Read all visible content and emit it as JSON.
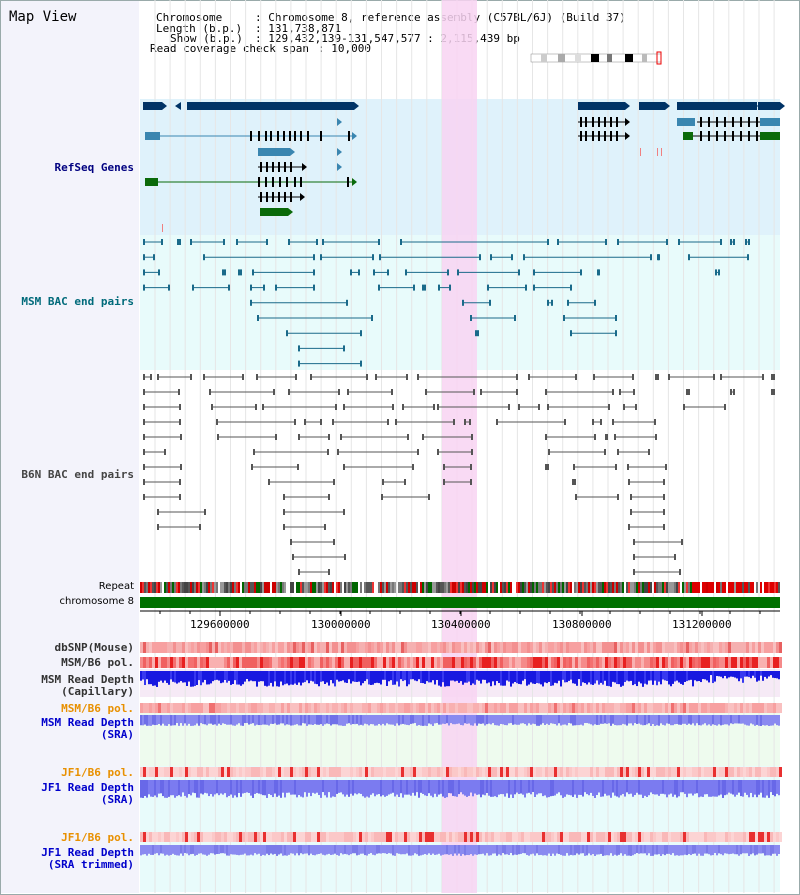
{
  "view_title": "Map View",
  "info": {
    "chromosome_label": "Chromosome",
    "chromosome_value": ": Chromosome 8, reference assembly (C57BL/6J) (Build 37)",
    "length_label": "Length (b.p.)",
    "length_value": ": 131,738,871",
    "show_label": "Show (b.p.)",
    "show_value": ": 129,432,139-131,547,577 : 2,115,439 bp",
    "coverage_label": "Read coverage check span",
    "coverage_value": ": 10,000"
  },
  "tracks": {
    "refseq": "RefSeq Genes",
    "msm_bac": "MSM BAC end pairs",
    "b6n_bac": "B6N BAC end pairs",
    "repeat": "Repeat",
    "chromosome": "chromosome 8",
    "dbsnp": "dbSNP(Mouse)",
    "msm_b6_pol_1": "MSM/B6 pol.",
    "msm_depth_cap_1": "MSM Read Depth",
    "msm_depth_cap_2": "(Capillary)",
    "msm_b6_pol_2": "MSM/B6 pol.",
    "msm_depth_sra_1": "MSM Read Depth",
    "msm_depth_sra_2": "(SRA)",
    "jf1_pol_1": "JF1/B6 pol.",
    "jf1_depth_sra_1": "JF1 Read Depth",
    "jf1_depth_sra_2": "(SRA)",
    "jf1_pol_2": "JF1/B6 pol.",
    "jf1_depth_trim_1": "JF1 Read Depth",
    "jf1_depth_trim_2": "(SRA trimmed)"
  },
  "axis_ticks": [
    "129600000",
    "130000000",
    "130400000",
    "130800000",
    "131200000"
  ],
  "colors": {
    "refseq_bg": "#dff2fb",
    "msm_bac_bg": "#e8fbfb",
    "highlight": "#f8d4f2",
    "navy": "#003366",
    "teal": "#2e6e8e",
    "green": "#0a6a0a",
    "depth_blue": "#2020e8",
    "depth_light": "#8888f0",
    "pol_red": "#f06060"
  }
}
